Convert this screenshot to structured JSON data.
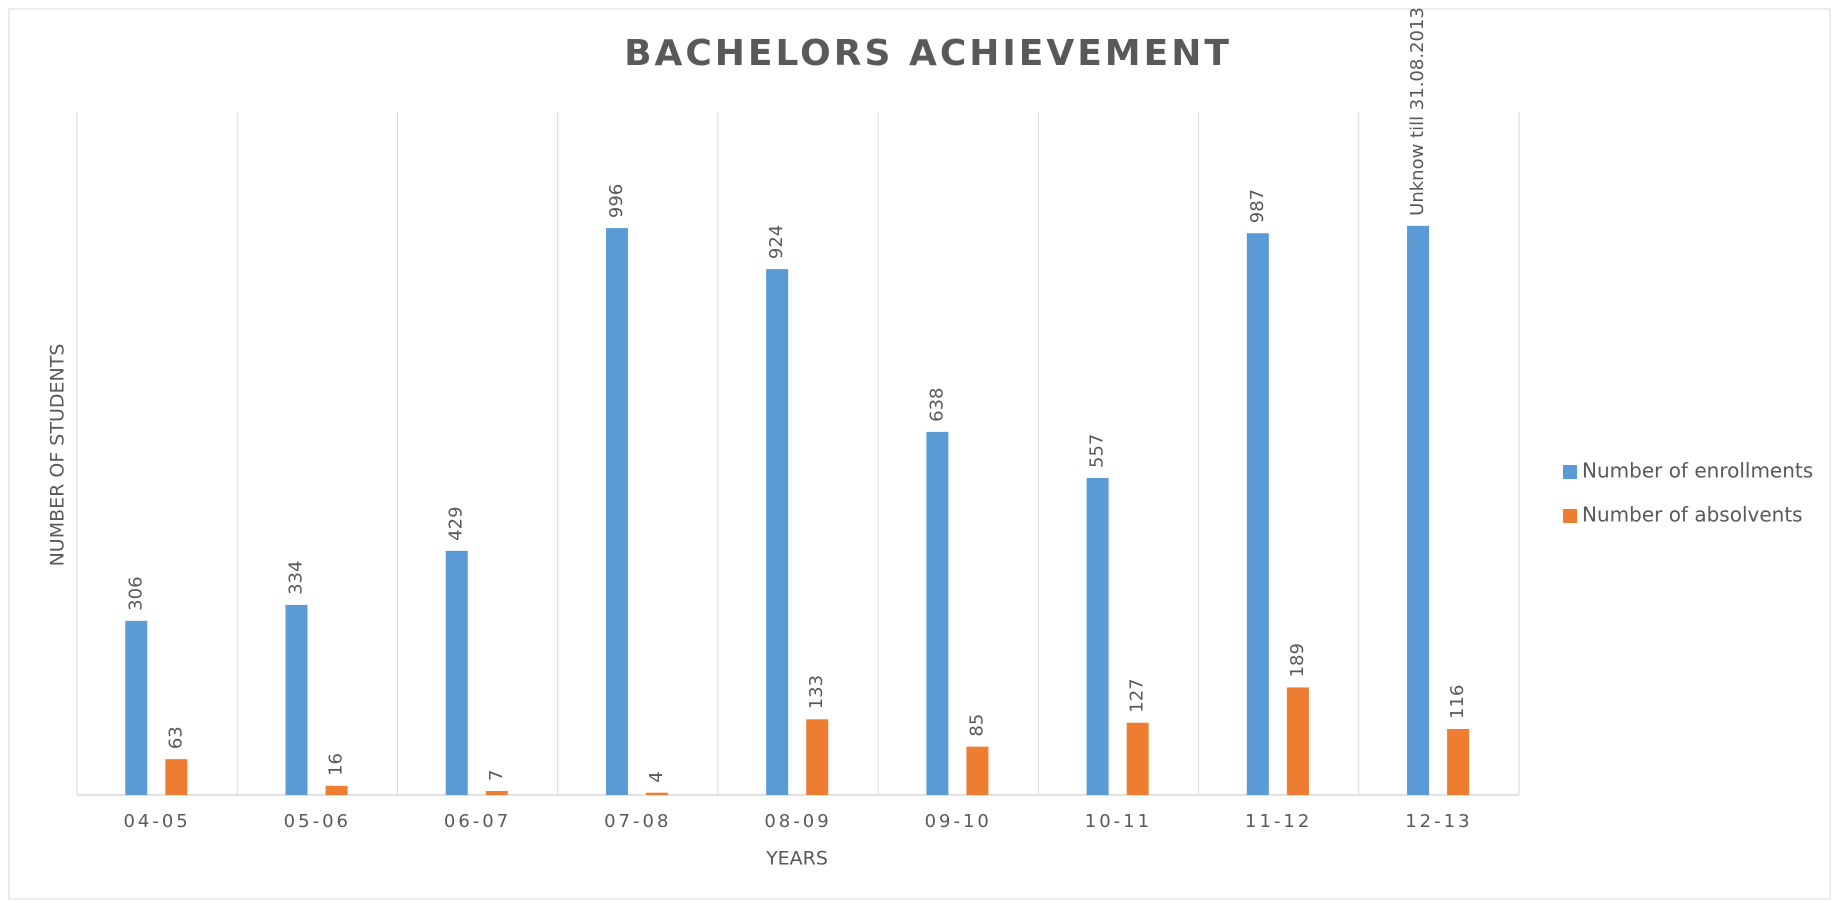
{
  "chart_data": {
    "type": "bar",
    "title": "BACHELORS ACHIEVEMENT",
    "x_label": "YEARS",
    "y_label": "NUMBER OF STUDENTS",
    "categories": [
      "04-05",
      "05-06",
      "06-07",
      "07-08",
      "08-09",
      "09-10",
      "10-11",
      "11-12",
      "12-13"
    ],
    "series": [
      {
        "name": "Number of enrollments",
        "color": "#5b9bd5",
        "values": [
          306,
          334,
          429,
          996,
          924,
          638,
          557,
          987,
          1000
        ],
        "value_labels": [
          "306",
          "334",
          "429",
          "996",
          "924",
          "638",
          "557",
          "987",
          "Unknow till 31.08.2013"
        ]
      },
      {
        "name": "Number of absolvents",
        "color": "#ed7d31",
        "values": [
          63,
          16,
          7,
          4,
          133,
          85,
          127,
          189,
          116
        ]
      }
    ],
    "ylim": [
      0,
      1200
    ],
    "legend": "right"
  }
}
